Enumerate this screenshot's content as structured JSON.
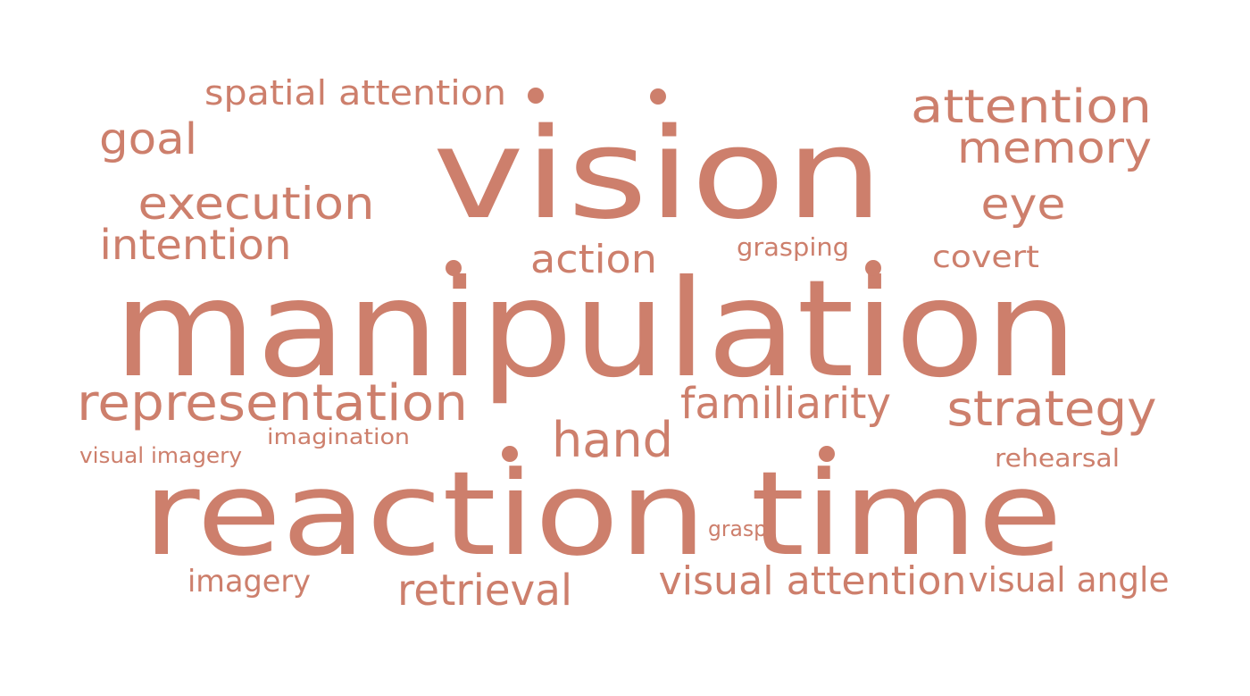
{
  "theme": {
    "word_color": "#cd7f6c",
    "background": "#ffffff"
  },
  "words": {
    "vision": "vision",
    "manipulation": "manipulation",
    "reaction_time": "reaction time",
    "attention": "attention",
    "memory": "memory",
    "eye": "eye",
    "covert": "covert",
    "spatial_attention": "spatial attention",
    "goal": "goal",
    "execution": "execution",
    "intention": "intention",
    "action": "action",
    "grasping": "grasping",
    "representation": "representation",
    "familiarity": "familiarity",
    "strategy": "strategy",
    "hand": "hand",
    "visual_imagery": "visual imagery",
    "imagination": "imagination",
    "rehearsal": "rehearsal",
    "grasp": "grasp",
    "imagery": "imagery",
    "retrieval": "retrieval",
    "visual_attention": "visual attention",
    "visual_angle": "visual angle"
  }
}
